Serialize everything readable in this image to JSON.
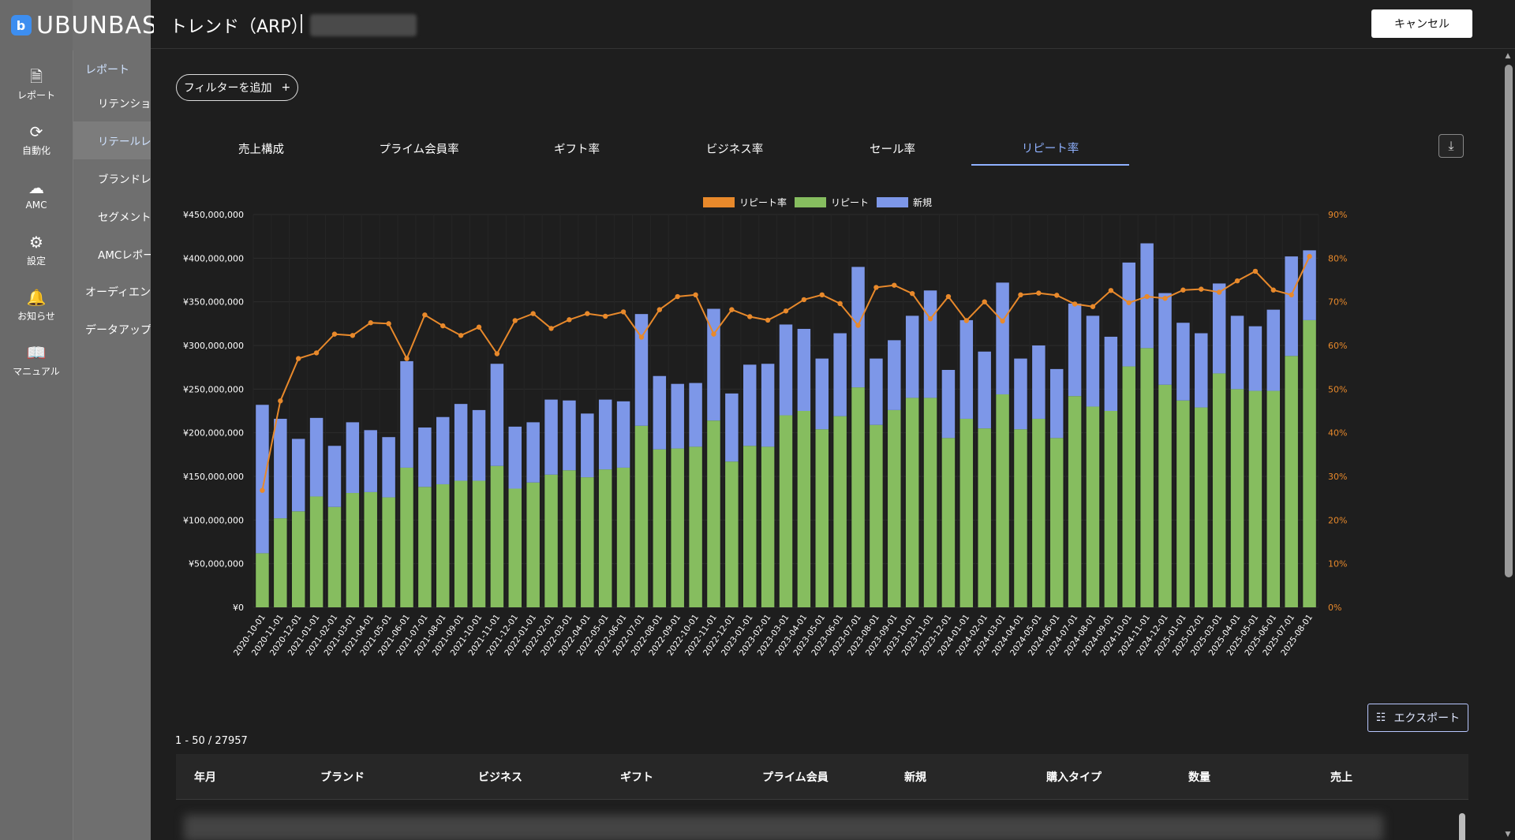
{
  "brand": {
    "name": "UBUNBASE",
    "mark": "b"
  },
  "rail": [
    {
      "label": "レポート",
      "icon": "report-icon",
      "glyph": "🗎"
    },
    {
      "label": "自動化",
      "icon": "automation-icon",
      "glyph": "⟳"
    },
    {
      "label": "AMC",
      "icon": "cloud-icon",
      "glyph": "☁"
    },
    {
      "label": "設定",
      "icon": "gear-icon",
      "glyph": "⚙"
    },
    {
      "label": "お知らせ",
      "icon": "bell-icon",
      "glyph": "🔔"
    },
    {
      "label": "マニュアル",
      "icon": "book-icon",
      "glyph": "📖"
    }
  ],
  "subnav": {
    "section": "レポート",
    "items": [
      "リテンションレ",
      "リテールレポ",
      "ブランドレポー",
      "セグメント注",
      "AMCレポー"
    ],
    "top_items": [
      "オーディエンス作",
      "データアップロー"
    ]
  },
  "header": {
    "title": "トレンド（ARP）",
    "cancel_label": "キャンセル"
  },
  "filter": {
    "label": "フィルターを追加",
    "plus": "+"
  },
  "tabs": [
    "売上構成",
    "プライム会員率",
    "ギフト率",
    "ビジネス率",
    "セール率",
    "リピート率"
  ],
  "active_tab": "リピート率",
  "export_label": "エクスポート",
  "count_text": "1 - 50 / 27957",
  "table_columns": [
    "年月",
    "ブランド",
    "ビジネス",
    "ギフト",
    "プライム会員",
    "新規",
    "購入タイプ",
    "数量",
    "売上"
  ],
  "colors": {
    "repeat_rate": "#e8892b",
    "repeat": "#86bd5f",
    "new": "#7d97e8"
  },
  "chart_data": {
    "type": "bar",
    "stacked": true,
    "legend_placement": "top-center",
    "legend": [
      "リピート率",
      "リピート",
      "新規"
    ],
    "categories": [
      "2020-10-01",
      "2020-11-01",
      "2020-12-01",
      "2021-01-01",
      "2021-02-01",
      "2021-03-01",
      "2021-04-01",
      "2021-05-01",
      "2021-06-01",
      "2021-07-01",
      "2021-08-01",
      "2021-09-01",
      "2021-10-01",
      "2021-11-01",
      "2021-12-01",
      "2022-01-01",
      "2022-02-01",
      "2022-03-01",
      "2022-04-01",
      "2022-05-01",
      "2022-06-01",
      "2022-07-01",
      "2022-08-01",
      "2022-09-01",
      "2022-10-01",
      "2022-11-01",
      "2022-12-01",
      "2023-01-01",
      "2023-02-01",
      "2023-03-01",
      "2023-04-01",
      "2023-05-01",
      "2023-06-01",
      "2023-07-01",
      "2023-08-01",
      "2023-09-01",
      "2023-10-01",
      "2023-11-01",
      "2023-12-01",
      "2024-01-01",
      "2024-02-01",
      "2024-03-01",
      "2024-04-01",
      "2024-05-01",
      "2024-06-01",
      "2024-07-01",
      "2024-08-01",
      "2024-09-01",
      "2024-10-01",
      "2024-11-01",
      "2024-12-01",
      "2025-01-01",
      "2025-02-01",
      "2025-03-01",
      "2025-04-01",
      "2025-05-01",
      "2025-06-01",
      "2025-07-01",
      "2025-08-01"
    ],
    "series": [
      {
        "name": "リピート",
        "axis": "left",
        "values": [
          62,
          102,
          110,
          127,
          115,
          131,
          132,
          126,
          160,
          138,
          141,
          145,
          145,
          162,
          136,
          143,
          152,
          157,
          149,
          158,
          160,
          208,
          181,
          182,
          184,
          214,
          167,
          185,
          184,
          220,
          225,
          204,
          219,
          252,
          209,
          226,
          240,
          240,
          194,
          216,
          205,
          244,
          204,
          216,
          194,
          242,
          230,
          225,
          276,
          297,
          255,
          237,
          229,
          268,
          250,
          248,
          248,
          288,
          329
        ]
      },
      {
        "name": "新規",
        "axis": "left",
        "values": [
          170,
          114,
          83,
          90,
          70,
          81,
          71,
          69,
          122,
          68,
          77,
          88,
          81,
          117,
          71,
          69,
          86,
          80,
          73,
          80,
          76,
          128,
          84,
          74,
          73,
          128,
          78,
          93,
          95,
          104,
          94,
          81,
          95,
          138,
          76,
          80,
          94,
          123,
          78,
          113,
          88,
          128,
          81,
          84,
          79,
          106,
          104,
          85,
          119,
          120,
          105,
          89,
          85,
          103,
          84,
          74,
          93,
          114,
          80
        ]
      },
      {
        "name": "リピート率",
        "axis": "right",
        "values": [
          26.8,
          47.3,
          57.0,
          58.3,
          62.6,
          62.3,
          65.2,
          65.0,
          57.0,
          67.0,
          64.5,
          62.3,
          64.2,
          58.1,
          65.7,
          67.3,
          63.9,
          65.9,
          67.3,
          66.7,
          67.7,
          61.9,
          68.2,
          71.2,
          71.6,
          62.6,
          68.2,
          66.6,
          65.8,
          67.9,
          70.5,
          71.6,
          69.6,
          64.6,
          73.3,
          73.8,
          71.9,
          66.1,
          71.2,
          65.7,
          70.0,
          65.6,
          71.6,
          72.0,
          71.5,
          69.5,
          68.9,
          72.6,
          69.8,
          71.2,
          70.8,
          72.7,
          72.9,
          72.2,
          74.8,
          77.0,
          72.7,
          71.6,
          80.4
        ]
      }
    ],
    "yunit": "¥",
    "ylim": [
      0,
      450000000
    ],
    "y_scale_note": "values in millions of yen",
    "y2lim": [
      0,
      90
    ],
    "yticks": [
      "¥0",
      "¥50,000,000",
      "¥100,000,000",
      "¥150,000,000",
      "¥200,000,000",
      "¥250,000,000",
      "¥300,000,000",
      "¥350,000,000",
      "¥400,000,000",
      "¥450,000,000"
    ],
    "y2ticks": [
      "0%",
      "10%",
      "20%",
      "30%",
      "40%",
      "50%",
      "60%",
      "70%",
      "80%",
      "90%"
    ]
  }
}
